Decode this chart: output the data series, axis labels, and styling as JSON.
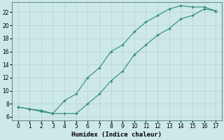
{
  "line1_x": [
    0,
    1,
    2,
    3,
    4,
    5,
    6,
    7,
    8,
    9,
    10,
    11,
    12,
    13,
    14,
    15,
    16,
    17
  ],
  "line1_y": [
    7.5,
    7.2,
    7.0,
    6.5,
    8.5,
    9.5,
    12.0,
    13.5,
    16.0,
    17.0,
    19.0,
    20.5,
    21.5,
    22.5,
    23.0,
    22.8,
    22.8,
    22.2
  ],
  "line2_x": [
    0,
    1,
    2,
    3,
    4,
    5,
    6,
    7,
    8,
    9,
    10,
    11,
    12,
    13,
    14,
    15,
    16,
    17
  ],
  "line2_y": [
    7.5,
    7.2,
    6.8,
    6.5,
    6.5,
    6.5,
    8.0,
    9.5,
    11.5,
    13.0,
    15.5,
    17.0,
    18.5,
    19.5,
    21.0,
    21.5,
    22.5,
    22.2
  ],
  "color": "#2e8b74",
  "bg_color": "#cce8e8",
  "grid_major_color": "#b0c8c8",
  "grid_minor_color": "#d0e4e4",
  "xlabel": "Humidex (Indice chaleur)",
  "xlim": [
    -0.5,
    17.5
  ],
  "ylim": [
    5.5,
    23.5
  ],
  "xticks": [
    0,
    1,
    2,
    3,
    4,
    5,
    6,
    7,
    8,
    9,
    10,
    11,
    12,
    13,
    14,
    15,
    16,
    17
  ],
  "yticks": [
    6,
    8,
    10,
    12,
    14,
    16,
    18,
    20,
    22
  ]
}
